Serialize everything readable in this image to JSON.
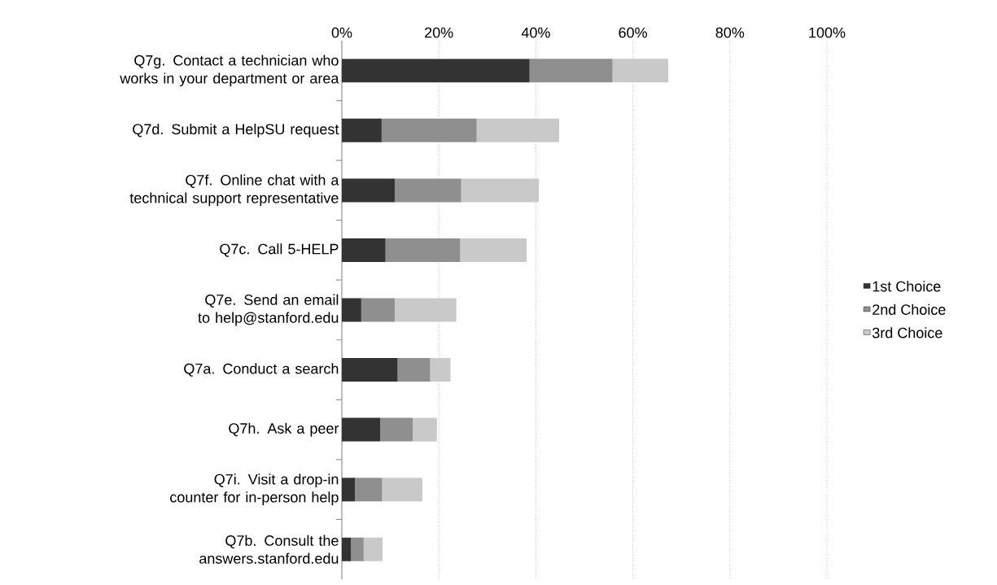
{
  "chart_data": {
    "type": "bar",
    "orientation": "horizontal",
    "stacked": true,
    "categories": [
      "Q7g. Contact a technician who works in your department or area",
      "Q7d. Submit a HelpSU request",
      "Q7f. Online chat with a technical support representative",
      "Q7c. Call 5-HELP",
      "Q7e. Send an email to help@stanford.edu",
      "Q7a. Conduct a search",
      "Q7h. Ask a peer",
      "Q7i. Visit a drop-in counter for in-person help",
      "Q7b. Consult the answers.stanford.edu"
    ],
    "series": [
      {
        "name": "1st Choice",
        "color": "#333333",
        "values": [
          38.7,
          8.2,
          10.9,
          9.0,
          4.0,
          11.5,
          7.9,
          2.7,
          1.9
        ]
      },
      {
        "name": "2nd Choice",
        "color": "#8f8f8f",
        "values": [
          17.1,
          19.6,
          13.7,
          15.4,
          6.9,
          6.7,
          6.7,
          5.6,
          2.6
        ]
      },
      {
        "name": "3rd Choice",
        "color": "#c9c9c9",
        "values": [
          11.5,
          17.0,
          16.0,
          13.7,
          12.7,
          4.2,
          5.0,
          8.3,
          3.9
        ]
      }
    ],
    "xlim": [
      0,
      100
    ],
    "xticks": [
      {
        "value": 0,
        "label": "0%"
      },
      {
        "value": 20,
        "label": "20%"
      },
      {
        "value": 40,
        "label": "40%"
      },
      {
        "value": 60,
        "label": "60%"
      },
      {
        "value": 80,
        "label": "80%"
      },
      {
        "value": 100,
        "label": "100%"
      }
    ],
    "grid": "x",
    "legend": "right"
  }
}
